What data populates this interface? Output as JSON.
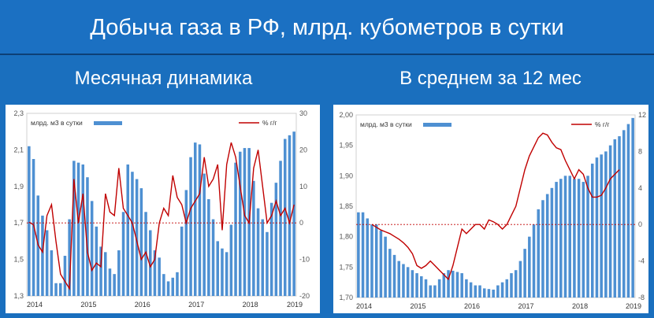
{
  "header": {
    "title": "Добыча газа в РФ, млрд. кубометров в сутки"
  },
  "subtitles": {
    "left": "Месячная динамика",
    "right": "В среднем за 12 мес"
  },
  "colors": {
    "bars": "#4e90d2",
    "line": "#c00000",
    "background": "#1b70c2"
  },
  "chart_data": [
    {
      "type": "bar",
      "name": "monthly",
      "legend": {
        "bars": "млрд. м3 в сутки",
        "line": "% г/г"
      },
      "x_labels": [
        "2014",
        "2015",
        "2016",
        "2017",
        "2018",
        "2019"
      ],
      "y_left": {
        "min": 1.3,
        "max": 2.3,
        "ticks": [
          "1,3",
          "1,5",
          "1,7",
          "1,9",
          "2,1",
          "2,3"
        ]
      },
      "y_right": {
        "min": -20,
        "max": 30,
        "ticks": [
          "-20",
          "-10",
          "0",
          "10",
          "20",
          "30"
        ]
      },
      "bar_values": [
        2.12,
        2.05,
        1.85,
        1.74,
        1.66,
        1.55,
        1.37,
        1.37,
        1.52,
        1.72,
        2.04,
        2.03,
        2.02,
        1.95,
        1.82,
        1.68,
        1.57,
        1.54,
        1.45,
        1.42,
        1.55,
        1.76,
        2.02,
        1.98,
        1.94,
        1.89,
        1.76,
        1.66,
        1.55,
        1.51,
        1.42,
        1.38,
        1.4,
        1.43,
        1.68,
        1.88,
        2.06,
        2.14,
        2.13,
        1.97,
        1.83,
        1.72,
        1.6,
        1.56,
        1.54,
        1.69,
        2.03,
        2.09,
        2.11,
        2.11,
        1.93,
        1.78,
        1.72,
        1.65,
        1.81,
        1.92,
        2.04,
        2.16,
        2.18,
        2.2
      ],
      "line_values": [
        0.2,
        -0.5,
        -6,
        -8,
        2,
        5,
        -5,
        -14,
        -16,
        -18,
        12,
        0,
        8,
        -8,
        -13,
        -11,
        -12,
        8,
        3,
        2,
        15,
        4,
        2,
        0,
        -5,
        -10,
        -8,
        -12,
        -10,
        0,
        4,
        2,
        13,
        7,
        5,
        0,
        4,
        6,
        8,
        18,
        10,
        12,
        16,
        -2,
        16,
        22,
        18,
        10,
        2,
        0,
        15,
        20,
        10,
        0,
        2,
        6,
        2,
        4,
        0,
        5
      ]
    },
    {
      "type": "bar",
      "name": "12-month average",
      "legend": {
        "bars": "млрд. м3 в сутки",
        "line": "% г/г"
      },
      "x_labels": [
        "2014",
        "2015",
        "2016",
        "2017",
        "2018",
        "2019"
      ],
      "y_left": {
        "min": 1.7,
        "max": 2.0,
        "ticks": [
          "1,70",
          "1,75",
          "1,80",
          "1,85",
          "1,90",
          "1,95",
          "2,00"
        ]
      },
      "y_right": {
        "min": -8,
        "max": 12,
        "ticks": [
          "-8",
          "-4",
          "0",
          "4",
          "8",
          "12"
        ]
      },
      "bar_values": [
        1.84,
        1.84,
        1.83,
        1.82,
        1.82,
        1.81,
        1.8,
        1.78,
        1.77,
        1.76,
        1.755,
        1.75,
        1.745,
        1.74,
        1.735,
        1.73,
        1.72,
        1.72,
        1.73,
        1.74,
        1.745,
        1.744,
        1.742,
        1.74,
        1.73,
        1.725,
        1.72,
        1.72,
        1.715,
        1.714,
        1.713,
        1.72,
        1.725,
        1.73,
        1.74,
        1.745,
        1.76,
        1.78,
        1.8,
        1.82,
        1.845,
        1.86,
        1.87,
        1.88,
        1.89,
        1.895,
        1.9,
        1.9,
        1.895,
        1.895,
        1.89,
        1.9,
        1.92,
        1.93,
        1.935,
        1.94,
        1.95,
        1.96,
        1.965,
        1.975,
        1.985,
        1.995
      ],
      "line_values": [
        0,
        -0.3,
        -0.6,
        -0.8,
        -1,
        -1.3,
        -1.6,
        -2,
        -2.5,
        -3.2,
        -4.5,
        -4.8,
        -4.5,
        -4,
        -4.5,
        -5,
        -5.5,
        -6,
        -4.5,
        -2.5,
        -0.5,
        -1,
        -0.5,
        0,
        0,
        -0.5,
        0.5,
        0.3,
        0,
        -0.5,
        0,
        1,
        2,
        4,
        6,
        7.5,
        8.5,
        9.5,
        10,
        9.8,
        9,
        8.4,
        8.2,
        7,
        6,
        5,
        6,
        5.5,
        4,
        3,
        3,
        3.2,
        4,
        5,
        5.5,
        6
      ],
      "line_start_index": 3
    }
  ]
}
